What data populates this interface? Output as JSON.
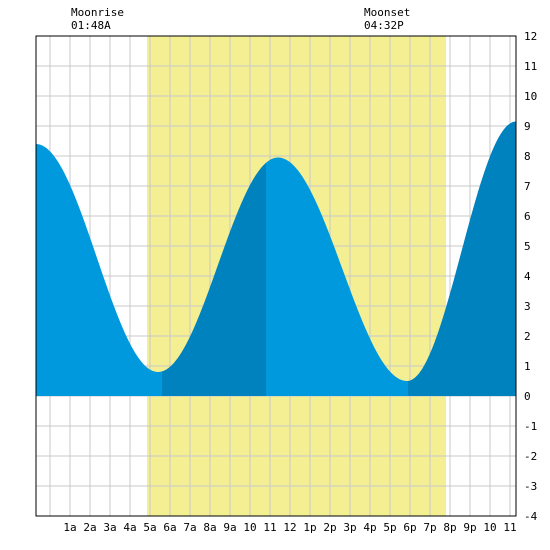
{
  "chart_data": {
    "type": "area",
    "moon": {
      "rise_label": "Moonrise",
      "rise_time": "01:48A",
      "set_label": "Moonset",
      "set_time": "04:32P"
    },
    "x_range_hours": [
      -0.7,
      23.3
    ],
    "y_range_ft": [
      -4,
      12
    ],
    "y_ticks": [
      -4,
      -3,
      -2,
      -1,
      0,
      1,
      2,
      3,
      4,
      5,
      6,
      7,
      8,
      9,
      10,
      11,
      12
    ],
    "x_tick_labels": [
      "1a",
      "2a",
      "3a",
      "4a",
      "5a",
      "6a",
      "7a",
      "8a",
      "9a",
      "10",
      "11",
      "12",
      "1p",
      "2p",
      "3p",
      "4p",
      "5p",
      "6p",
      "7p",
      "8p",
      "9p",
      "10",
      "11"
    ],
    "daylight_hours": [
      4.85,
      19.8
    ],
    "tide_extremes": [
      {
        "hour": -0.7,
        "height": 8.4
      },
      {
        "hour": 5.4,
        "height": 0.8
      },
      {
        "hour": 11.4,
        "height": 7.95
      },
      {
        "hour": 17.85,
        "height": 0.5
      },
      {
        "hour": 23.3,
        "height": 9.15
      }
    ],
    "shade_segments": [
      {
        "from": -0.7,
        "to": 5.6,
        "shade": "light"
      },
      {
        "from": 5.6,
        "to": 10.8,
        "shade": "dark"
      },
      {
        "from": 10.8,
        "to": 17.9,
        "shade": "light"
      },
      {
        "from": 17.9,
        "to": 23.3,
        "shade": "dark"
      }
    ],
    "colors": {
      "daylight": "#f5ef93",
      "tide_light": "#0099dd",
      "tide_dark": "#0082be",
      "grid": "#c8c8c8",
      "border": "#000000"
    }
  }
}
